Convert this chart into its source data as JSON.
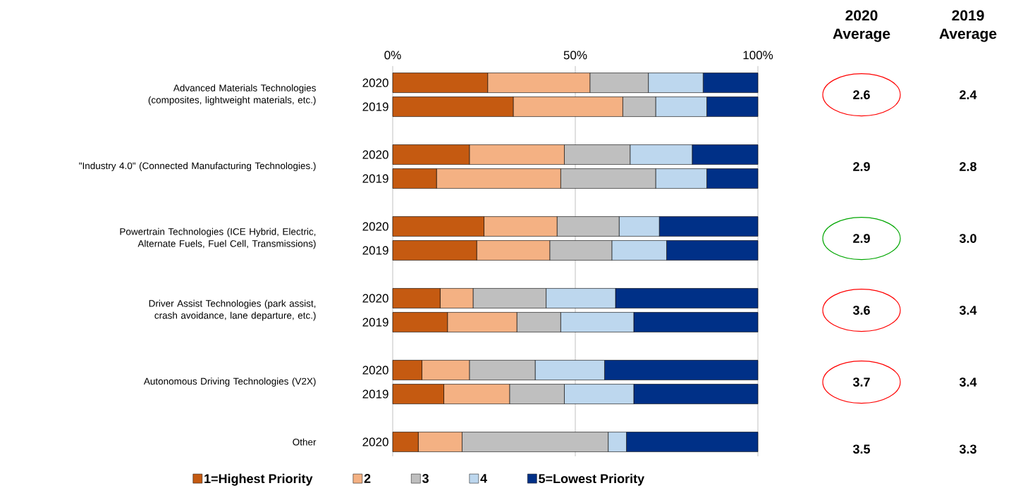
{
  "chart_data": {
    "type": "bar",
    "orientation": "horizontal",
    "stacked": true,
    "categories": [
      "2020",
      "2019",
      null,
      "2020",
      "2019",
      null,
      "2020",
      "2019",
      null,
      "2020",
      "2019",
      null,
      "2020",
      "2019",
      null,
      "2020"
    ],
    "xlim": [
      0,
      100
    ],
    "xticks": [
      {
        "value": 0,
        "label": "0%"
      },
      {
        "value": 50,
        "label": "50%"
      },
      {
        "value": 100,
        "label": "100%"
      }
    ],
    "grid": "x",
    "legend": "bottom",
    "series": [
      {
        "name": "1=Highest Priority",
        "color": "#c55a11",
        "values": [
          26,
          33,
          null,
          21,
          12,
          null,
          25,
          23,
          null,
          13,
          15,
          null,
          8,
          14,
          null,
          7
        ]
      },
      {
        "name": "2",
        "color": "#f4b183",
        "values": [
          28,
          30,
          null,
          26,
          34,
          null,
          20,
          20,
          null,
          9,
          19,
          null,
          13,
          18,
          null,
          12
        ]
      },
      {
        "name": "3",
        "color": "#bfbfbf",
        "values": [
          16,
          9,
          null,
          18,
          26,
          null,
          17,
          17,
          null,
          20,
          12,
          null,
          18,
          15,
          null,
          40
        ]
      },
      {
        "name": "4",
        "color": "#bdd7ee",
        "values": [
          15,
          14,
          null,
          17,
          14,
          null,
          11,
          15,
          null,
          19,
          20,
          null,
          19,
          19,
          null,
          5
        ]
      },
      {
        "name": "5=Lowest Priority",
        "color": "#003087",
        "values": [
          15,
          14,
          null,
          18,
          14,
          null,
          27,
          25,
          null,
          39,
          34,
          null,
          42,
          34,
          null,
          36
        ]
      }
    ],
    "annotations": [
      "Advanced Materials Technologies (composites, lightweight materials, etc.)",
      "\"Industry 4.0\" (Connected Manufacturing Technologies.)",
      "Powertrain Technologies (ICE Hybrid, Electric, Alternate Fuels, Fuel Cell, Transmissions)",
      "Driver Assist Technologies (park assist, crash avoidance, lane departure, etc.)",
      "Autonomous Driving Technologies (V2X)",
      "Other",
      "2020 Average",
      "2019 Average",
      "2.6",
      "2.4",
      "2.9",
      "2.8",
      "2.9",
      "3.0",
      "3.6",
      "3.4",
      "3.7",
      "3.4",
      "3.5",
      "3.3"
    ]
  }
}
